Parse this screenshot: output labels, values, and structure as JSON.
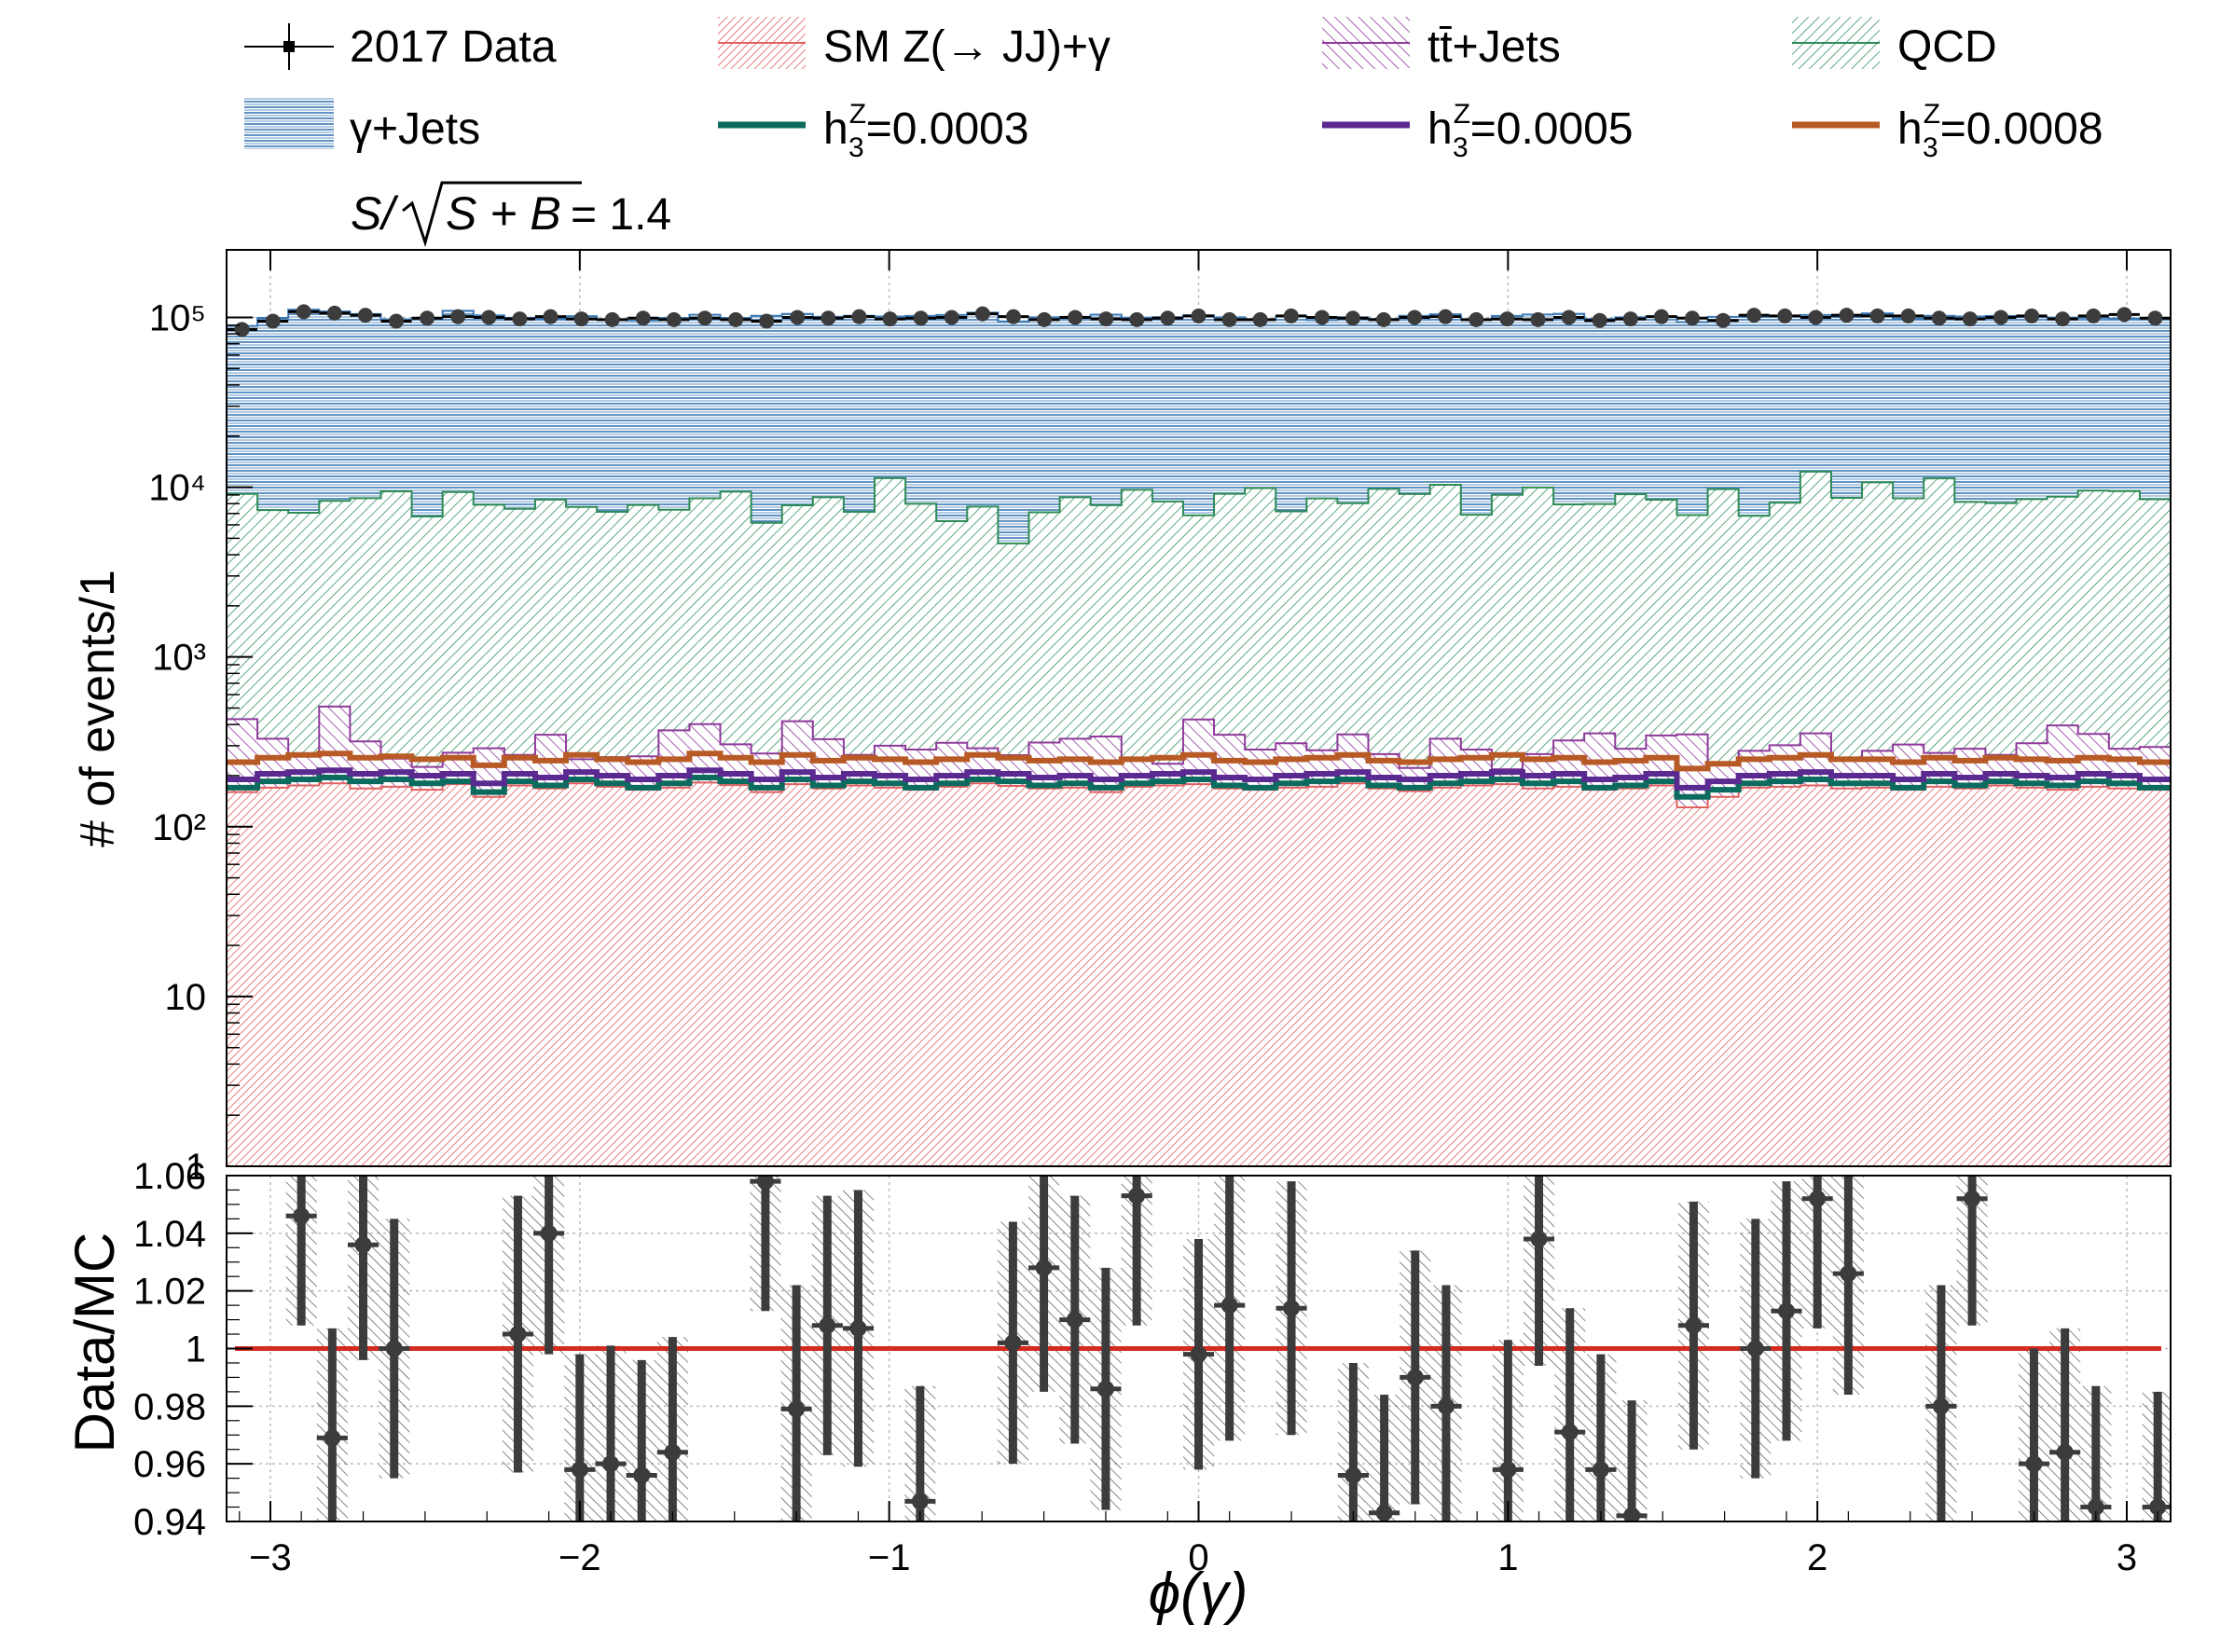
{
  "colors": {
    "data": "#000000",
    "sm_zjj": "#e06060",
    "ttbar": "#8e3a9b",
    "qcd": "#2e8b57",
    "gjets": "#3a78b5",
    "h3_0003": "#0b6b5e",
    "h3_0005": "#5b2a91",
    "h3_0008": "#b85a25",
    "ratio_line": "#d42a20",
    "ratio_points": "#3c3c3c"
  },
  "legend": {
    "data": "2017 Data",
    "sm_zjj": "SM Z(→ JJ)+γ",
    "ttbar": "tt̄+Jets",
    "qcd": "QCD",
    "gjets": "γ+Jets",
    "h3_0003": "=0.0003",
    "h3_0005": "=0.0005",
    "h3_0008": "=0.0008",
    "h3_symbol": "h",
    "h3_sub": "3",
    "h3_sup": "Z"
  },
  "significance": {
    "text": "= 1.4",
    "label": "S/√S + B"
  },
  "chart_data": [
    {
      "type": "histogram-stack",
      "xlabel": "ϕ(γ)",
      "ylabel": "# of events/1",
      "xlim": [
        -3.14159,
        3.14159
      ],
      "ylim": [
        1,
        250000
      ],
      "log_y": true,
      "grid": true,
      "x_ticks": [
        "−3",
        "−2",
        "−1",
        "0",
        "1",
        "2",
        "3"
      ],
      "y_ticks": [
        "1",
        "10",
        "10²",
        "10³",
        "10⁴",
        "10⁵"
      ],
      "bins": 63,
      "series": [
        {
          "name": "SM Z(→ JJ)+γ",
          "key": "sm_zjj",
          "stacked": true,
          "values": [
            160,
            170,
            175,
            180,
            168,
            172,
            165,
            178,
            150,
            175,
            168,
            180,
            172,
            165,
            170,
            182,
            176,
            160,
            178,
            168,
            175,
            170,
            165,
            172,
            180,
            174,
            168,
            170,
            160,
            172,
            175,
            178,
            168,
            165,
            170,
            172,
            180,
            168,
            162,
            170,
            175,
            178,
            168,
            172,
            165,
            168,
            175,
            130,
            150,
            170,
            172,
            175,
            168,
            170,
            165,
            172,
            168,
            175,
            170,
            165,
            172,
            168,
            165
          ]
        },
        {
          "name": "tt̄+Jets",
          "key": "ttbar",
          "stacked": true,
          "values": [
            270,
            160,
            90,
            330,
            150,
            80,
            60,
            95,
            140,
            90,
            180,
            70,
            85,
            95,
            200,
            220,
            130,
            110,
            240,
            160,
            90,
            130,
            120,
            140,
            110,
            90,
            145,
            160,
            180,
            80,
            60,
            250,
            180,
            120,
            140,
            110,
            170,
            100,
            60,
            160,
            110,
            40,
            100,
            150,
            190,
            120,
            170,
            220,
            90,
            110,
            130,
            180,
            80,
            110,
            140,
            100,
            120,
            90,
            140,
            230,
            180,
            120,
            130
          ]
        },
        {
          "name": "QCD",
          "key": "qcd",
          "stacked": true,
          "values": [
            8700,
            7000,
            6800,
            7800,
            8300,
            9200,
            6500,
            9100,
            7600,
            7200,
            8100,
            7400,
            6900,
            7600,
            7000,
            8200,
            9100,
            5900,
            7400,
            8400,
            6900,
            11000,
            7700,
            6000,
            7400,
            4400,
            6800,
            8400,
            7500,
            9400,
            8000,
            6400,
            8800,
            9600,
            6900,
            8300,
            7700,
            9500,
            8900,
            10000,
            6600,
            8800,
            9700,
            7600,
            7600,
            8800,
            8100,
            6500,
            9500,
            6500,
            7800,
            12000,
            8400,
            10400,
            8300,
            11000,
            7900,
            7800,
            8200,
            8400,
            9200,
            9200,
            8200
          ]
        },
        {
          "name": "γ+Jets",
          "key": "gjets",
          "stacked": true,
          "values": [
            80000,
            92000,
            104000,
            100000,
            96000,
            88000,
            91000,
            100000,
            95000,
            92000,
            90000,
            94000,
            90000,
            88000,
            92000,
            95000,
            90000,
            96000,
            97000,
            92000,
            95000,
            90000,
            94000,
            97000,
            99000,
            90000,
            93000,
            92000,
            96000,
            90000,
            92000,
            96000,
            91000,
            87000,
            94000,
            88000,
            92000,
            88000,
            93000,
            94000,
            90000,
            93000,
            94000,
            97000,
            90000,
            91000,
            93000,
            87000,
            91000,
            94000,
            93000,
            91000,
            92000,
            95000,
            90000,
            91000,
            93000,
            94000,
            92000,
            91000,
            90000,
            89000,
            90000
          ]
        },
        {
          "name": "2017 Data",
          "key": "data",
          "stacked": false,
          "values": [
            85000,
            95000,
            108000,
            106000,
            103000,
            95000,
            99000,
            101000,
            100000,
            98000,
            101000,
            98000,
            97000,
            99000,
            97000,
            99000,
            97000,
            95000,
            100000,
            99000,
            101000,
            98000,
            99000,
            100000,
            105000,
            101000,
            97000,
            100000,
            98000,
            97000,
            99000,
            102000,
            97000,
            97000,
            102000,
            100000,
            99000,
            97000,
            100000,
            101000,
            97000,
            98000,
            97000,
            100000,
            96000,
            98000,
            101000,
            99000,
            96000,
            103000,
            102000,
            100000,
            103000,
            102000,
            102000,
            99000,
            98000,
            100000,
            102000,
            98000,
            102000,
            104000,
            99000
          ]
        },
        {
          "name": "=0.0003",
          "key": "h3_0003",
          "stacked": false,
          "values": [
            170,
            185,
            190,
            195,
            185,
            190,
            180,
            185,
            160,
            185,
            175,
            190,
            180,
            170,
            180,
            195,
            185,
            170,
            190,
            175,
            185,
            180,
            170,
            180,
            190,
            185,
            175,
            180,
            170,
            180,
            185,
            190,
            175,
            170,
            180,
            185,
            190,
            175,
            170,
            180,
            185,
            190,
            180,
            185,
            170,
            175,
            185,
            150,
            165,
            180,
            185,
            190,
            180,
            180,
            170,
            185,
            175,
            185,
            180,
            175,
            185,
            180,
            170
          ]
        },
        {
          "name": "=0.0005",
          "key": "h3_0005",
          "stacked": false,
          "values": [
            190,
            205,
            210,
            215,
            205,
            210,
            200,
            205,
            180,
            205,
            195,
            210,
            200,
            190,
            200,
            215,
            205,
            190,
            210,
            195,
            205,
            200,
            190,
            200,
            210,
            205,
            195,
            200,
            190,
            200,
            205,
            210,
            195,
            190,
            200,
            205,
            210,
            195,
            190,
            200,
            205,
            210,
            200,
            205,
            190,
            195,
            205,
            170,
            185,
            200,
            205,
            210,
            200,
            200,
            190,
            205,
            195,
            205,
            200,
            195,
            205,
            200,
            190
          ]
        },
        {
          "name": "=0.0008",
          "key": "h3_0008",
          "stacked": false,
          "values": [
            240,
            255,
            265,
            270,
            255,
            260,
            250,
            255,
            230,
            255,
            245,
            265,
            250,
            240,
            250,
            270,
            255,
            240,
            265,
            245,
            255,
            250,
            240,
            250,
            265,
            255,
            245,
            250,
            240,
            250,
            255,
            265,
            245,
            240,
            250,
            255,
            265,
            245,
            240,
            250,
            255,
            265,
            250,
            255,
            240,
            245,
            255,
            220,
            235,
            250,
            255,
            265,
            250,
            250,
            240,
            255,
            245,
            255,
            250,
            245,
            255,
            250,
            240
          ]
        }
      ]
    },
    {
      "type": "ratio",
      "ylabel": "Data/MC",
      "xlim": [
        -3.14159,
        3.14159
      ],
      "ylim": [
        0.94,
        1.06
      ],
      "y_ticks": [
        "0.94",
        "0.96",
        "0.98",
        "1",
        "1.02",
        "1.04",
        "1.06"
      ],
      "reference": 1.0,
      "x": [
        -2.9,
        -2.8,
        -2.7,
        -2.6,
        -2.2,
        -2.1,
        -2.0,
        -1.9,
        -1.8,
        -1.7,
        -1.4,
        -1.3,
        -1.2,
        -1.1,
        -0.9,
        -0.6,
        -0.5,
        -0.4,
        -0.3,
        -0.2,
        0.0,
        0.1,
        0.3,
        0.5,
        0.6,
        0.7,
        0.8,
        1.0,
        1.1,
        1.2,
        1.3,
        1.4,
        1.6,
        1.8,
        1.9,
        2.0,
        2.1,
        2.4,
        2.5,
        2.7,
        2.8,
        2.9,
        3.1
      ],
      "y": [
        1.046,
        0.969,
        1.036,
        1.0,
        1.005,
        1.04,
        0.958,
        0.96,
        0.956,
        0.964,
        1.058,
        0.979,
        1.008,
        1.007,
        0.947,
        1.002,
        1.028,
        1.01,
        0.986,
        1.053,
        0.998,
        1.015,
        1.014,
        0.956,
        0.943,
        0.99,
        0.98,
        0.958,
        1.038,
        0.971,
        0.958,
        0.942,
        1.008,
        1.0,
        1.013,
        1.052,
        1.026,
        0.98,
        1.052,
        0.96,
        0.964,
        0.945,
        0.945
      ],
      "err": [
        0.038,
        0.038,
        0.04,
        0.045,
        0.048,
        0.042,
        0.04,
        0.041,
        0.04,
        0.04,
        0.045,
        0.043,
        0.045,
        0.048,
        0.04,
        0.042,
        0.043,
        0.043,
        0.042,
        0.045,
        0.04,
        0.047,
        0.044,
        0.039,
        0.041,
        0.044,
        0.042,
        0.045,
        0.044,
        0.043,
        0.04,
        0.04,
        0.043,
        0.045,
        0.045,
        0.045,
        0.042,
        0.042,
        0.044,
        0.04,
        0.043,
        0.042,
        0.04
      ]
    }
  ]
}
